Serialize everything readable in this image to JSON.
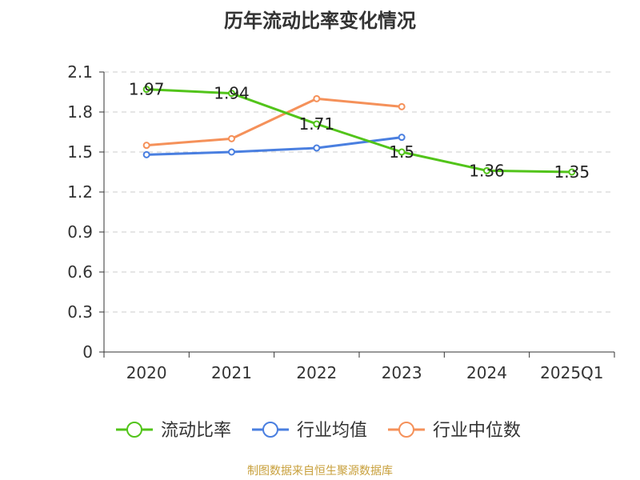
{
  "chart_data": {
    "type": "line",
    "title": "历年流动比率变化情况",
    "categories": [
      "2020",
      "2021",
      "2022",
      "2023",
      "2024",
      "2025Q1"
    ],
    "y_ticks": [
      "0",
      "0.3",
      "0.6",
      "0.9",
      "1.2",
      "1.5",
      "1.8",
      "2.1"
    ],
    "ylim": [
      0,
      2.1
    ],
    "grid": true,
    "legend_position": "bottom",
    "series": [
      {
        "name": "流动比率",
        "color": "#52c41a",
        "values": [
          1.97,
          1.94,
          1.71,
          1.5,
          1.36,
          1.35
        ],
        "labels": [
          "1.97",
          "1.94",
          "1.71",
          "1.5",
          "1.36",
          "1.35"
        ]
      },
      {
        "name": "行业均值",
        "color": "#4a7fe0",
        "values": [
          1.48,
          1.5,
          1.53,
          1.61,
          null,
          null
        ]
      },
      {
        "name": "行业中位数",
        "color": "#f5915a",
        "values": [
          1.55,
          1.6,
          1.9,
          1.84,
          null,
          null
        ]
      }
    ]
  },
  "source": "制图数据来自恒生聚源数据库"
}
